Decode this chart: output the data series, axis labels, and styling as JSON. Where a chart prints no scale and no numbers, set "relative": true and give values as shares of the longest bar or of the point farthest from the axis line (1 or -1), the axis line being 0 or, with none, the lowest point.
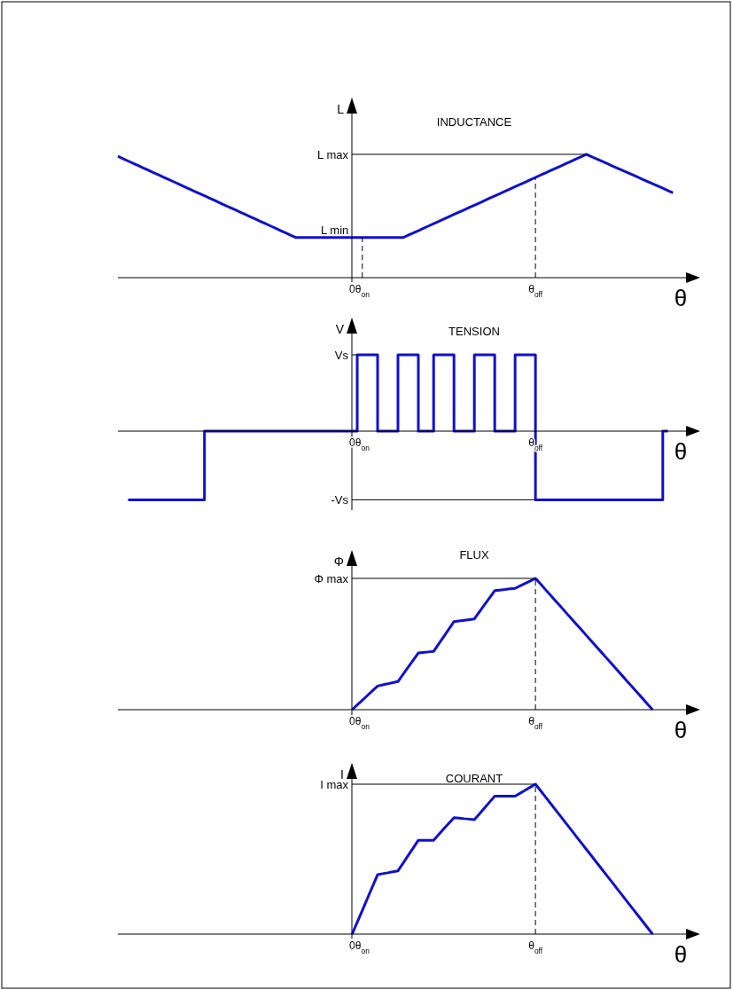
{
  "chart_data": [
    {
      "type": "line",
      "title": "INDUCTANCE",
      "ylabel": "L",
      "xlabel": "θ",
      "relative": true,
      "categories": [
        null,
        null,
        null,
        null,
        null,
        null,
        null,
        null,
        null,
        null,
        null,
        null,
        null,
        null,
        null,
        null,
        null,
        null,
        null,
        null,
        null,
        null,
        null,
        null,
        null,
        null,
        null,
        null,
        null,
        null,
        null,
        null,
        null,
        null,
        null,
        null,
        null,
        null,
        null,
        null,
        null,
        null,
        null,
        null,
        null,
        null,
        "0",
        null,
        "θ$_{on}$",
        null,
        null,
        null,
        null,
        null,
        null,
        null,
        null,
        null,
        null,
        null,
        null,
        null,
        null,
        null,
        null,
        null,
        null,
        null,
        null,
        null,
        null,
        null,
        null,
        null,
        null,
        null,
        null,
        null,
        null,
        null,
        null,
        null,
        "θ$_{off}$",
        null,
        null,
        null,
        null,
        null,
        null,
        null,
        null,
        null,
        null,
        null,
        null,
        null,
        null,
        null,
        null,
        null,
        null,
        null,
        null,
        null,
        null,
        null,
        null,
        null,
        null,
        null,
        null,
        null,
        null,
        null,
        null
      ],
      "series": [
        {
          "color": "#1010d0",
          "values": [
            0.984,
            0.965,
            0.946,
            0.928,
            0.909,
            0.89,
            0.871,
            0.852,
            0.833,
            0.814,
            0.796,
            0.777,
            0.758,
            0.739,
            0.72,
            0.701,
            0.683,
            0.664,
            0.645,
            0.626,
            0.607,
            0.588,
            0.57,
            0.551,
            0.532,
            0.513,
            0.494,
            0.475,
            0.456,
            0.438,
            0.419,
            0.4,
            0.381,
            0.362,
            0.343,
            0.325,
            0.325,
            0.325,
            0.325,
            0.325,
            0.325,
            0.325,
            0.325,
            0.325,
            0.325,
            0.325,
            0.325,
            0.325,
            0.325,
            0.325,
            0.325,
            0.325,
            0.325,
            0.325,
            0.325,
            0.325,
            0.325,
            0.344,
            0.363,
            0.381,
            0.4,
            0.419,
            0.438,
            0.456,
            0.475,
            0.494,
            0.513,
            0.531,
            0.55,
            0.569,
            0.588,
            0.606,
            0.625,
            0.644,
            0.663,
            0.681,
            0.7,
            0.719,
            0.738,
            0.756,
            0.775,
            0.794,
            0.813,
            0.831,
            0.85,
            0.869,
            0.888,
            0.906,
            0.925,
            0.944,
            0.963,
            0.981,
            1,
            0.982,
            0.963,
            0.945,
            0.927,
            0.908,
            0.89,
            0.872,
            0.853,
            0.835,
            0.817,
            0.798,
            0.78,
            0.761,
            0.743,
            0.725,
            0.706,
            0.688,
            null,
            null,
            null,
            null,
            null
          ]
        }
      ],
      "ref_lines": [
        {
          "axis": "y",
          "value": 1,
          "label": "L max"
        },
        {
          "axis": "x",
          "value": "θ$_{on}$",
          "line_style": "dashed"
        },
        {
          "axis": "x",
          "value": "θ$_{off}$",
          "line_style": "dashed"
        }
      ],
      "annotations": [
        {
          "text": "L min",
          "x": "0",
          "y": 0.325
        }
      ]
    },
    {
      "type": "step",
      "title": "TENSION",
      "ylabel": "V",
      "xlabel": "θ",
      "relative": true,
      "categories": [
        null,
        null,
        null,
        null,
        null,
        null,
        null,
        null,
        null,
        null,
        null,
        null,
        null,
        null,
        null,
        null,
        null,
        null,
        null,
        null,
        null,
        null,
        null,
        null,
        null,
        null,
        null,
        null,
        null,
        null,
        null,
        null,
        null,
        null,
        null,
        null,
        null,
        null,
        null,
        null,
        null,
        null,
        null,
        null,
        null,
        null,
        "0",
        null,
        "θ$_{on}$",
        null,
        null,
        null,
        null,
        null,
        null,
        null,
        null,
        null,
        null,
        null,
        null,
        null,
        null,
        null,
        null,
        null,
        null,
        null,
        null,
        null,
        null,
        null,
        null,
        null,
        null,
        null,
        null,
        null,
        null,
        null,
        null,
        null,
        "θ$_{off}$",
        null,
        null,
        null,
        null,
        null,
        null,
        null,
        null,
        null,
        null,
        null,
        null,
        null,
        null,
        null,
        null,
        null,
        null,
        null,
        null,
        null,
        null,
        null,
        null,
        null,
        null,
        null,
        null,
        null,
        null,
        null,
        null
      ],
      "series": [
        {
          "color": "#1010d0",
          "values": [
            null,
            null,
            -0.9,
            -0.9,
            -0.9,
            -0.9,
            -0.9,
            -0.9,
            -0.9,
            -0.9,
            -0.9,
            -0.9,
            -0.9,
            -0.9,
            -0.9,
            -0.9,
            -0.9,
            0,
            0,
            0,
            0,
            0,
            0,
            0,
            0,
            0,
            0,
            0,
            0,
            0,
            0,
            0,
            0,
            0,
            0,
            0,
            0,
            0,
            0,
            0,
            0,
            0,
            0,
            0,
            0,
            0,
            0,
            1,
            1,
            1,
            1,
            0,
            0,
            0,
            0,
            1,
            1,
            1,
            1,
            0,
            0,
            0,
            1,
            1,
            1,
            1,
            0,
            0,
            0,
            0,
            1,
            1,
            1,
            1,
            0,
            0,
            0,
            0,
            1,
            1,
            1,
            1,
            -0.9,
            -0.9,
            -0.9,
            -0.9,
            -0.9,
            -0.9,
            -0.9,
            -0.9,
            -0.9,
            -0.9,
            -0.9,
            -0.9,
            -0.9,
            -0.9,
            -0.9,
            -0.9,
            -0.9,
            -0.9,
            -0.9,
            -0.9,
            -0.9,
            -0.9,
            -0.9,
            -0.9,
            -0.9,
            0,
            0,
            null,
            null,
            null,
            null,
            null,
            null
          ]
        }
      ],
      "ref_lines": [
        {
          "axis": "y",
          "value": 1,
          "label": "Vs"
        },
        {
          "axis": "y",
          "value": -0.9,
          "label": "-Vs"
        }
      ]
    },
    {
      "type": "line",
      "title": "FLUX",
      "ylabel": "Φ",
      "xlabel": "θ",
      "relative": true,
      "categories": [
        null,
        null,
        null,
        null,
        null,
        null,
        null,
        null,
        null,
        null,
        null,
        null,
        null,
        null,
        null,
        null,
        null,
        null,
        null,
        null,
        null,
        null,
        null,
        null,
        null,
        null,
        null,
        null,
        null,
        null,
        null,
        null,
        null,
        null,
        null,
        null,
        null,
        null,
        null,
        null,
        null,
        null,
        null,
        null,
        null,
        null,
        "0",
        null,
        "θ$_{on}$",
        null,
        null,
        null,
        null,
        null,
        null,
        null,
        null,
        null,
        null,
        null,
        null,
        null,
        null,
        null,
        null,
        null,
        null,
        null,
        null,
        null,
        null,
        null,
        null,
        null,
        null,
        null,
        null,
        null,
        null,
        null,
        null,
        null,
        "θ$_{off}$",
        null,
        null,
        null,
        null,
        null,
        null,
        null,
        null,
        null,
        null,
        null,
        null,
        null,
        null,
        null,
        null,
        null,
        null,
        null,
        null,
        null,
        null,
        null,
        null,
        null,
        null,
        null,
        null,
        null,
        null,
        null,
        null
      ],
      "series": [
        {
          "color": "#1010d0",
          "values": [
            null,
            null,
            null,
            null,
            null,
            null,
            null,
            null,
            null,
            null,
            null,
            null,
            null,
            null,
            null,
            null,
            null,
            null,
            null,
            null,
            null,
            null,
            null,
            null,
            null,
            null,
            null,
            null,
            null,
            null,
            null,
            null,
            null,
            null,
            null,
            null,
            null,
            null,
            null,
            null,
            null,
            null,
            null,
            null,
            null,
            null,
            0,
            0.036,
            0.072,
            0.108,
            0.144,
            0.18,
            0.189,
            0.197,
            0.206,
            0.214,
            0.269,
            0.323,
            0.378,
            0.432,
            0.436,
            0.44,
            0.444,
            0.501,
            0.557,
            0.614,
            0.671,
            0.676,
            0.681,
            0.686,
            0.691,
            0.745,
            0.799,
            0.853,
            0.907,
            0.911,
            0.915,
            0.92,
            0.924,
            0.943,
            0.962,
            0.981,
            1,
            0.957,
            0.913,
            0.87,
            0.826,
            0.783,
            0.739,
            0.696,
            0.652,
            0.609,
            0.565,
            0.522,
            0.478,
            0.435,
            0.391,
            0.348,
            0.304,
            0.261,
            0.217,
            0.174,
            0.13,
            0.087,
            0.043,
            0,
            null,
            null,
            null,
            null,
            null,
            null,
            null,
            null,
            null
          ]
        }
      ],
      "ref_lines": [
        {
          "axis": "y",
          "value": 1,
          "label": "Φ max"
        },
        {
          "axis": "x",
          "value": "θ$_{off}$",
          "line_style": "dashed"
        }
      ]
    },
    {
      "type": "line",
      "title": "COURANT",
      "ylabel": "I",
      "xlabel": "θ",
      "relative": true,
      "categories": [
        null,
        null,
        null,
        null,
        null,
        null,
        null,
        null,
        null,
        null,
        null,
        null,
        null,
        null,
        null,
        null,
        null,
        null,
        null,
        null,
        null,
        null,
        null,
        null,
        null,
        null,
        null,
        null,
        null,
        null,
        null,
        null,
        null,
        null,
        null,
        null,
        null,
        null,
        null,
        null,
        null,
        null,
        null,
        null,
        null,
        null,
        "0",
        null,
        "θ$_{on}$",
        null,
        null,
        null,
        null,
        null,
        null,
        null,
        null,
        null,
        null,
        null,
        null,
        null,
        null,
        null,
        null,
        null,
        null,
        null,
        null,
        null,
        null,
        null,
        null,
        null,
        null,
        null,
        null,
        null,
        null,
        null,
        null,
        null,
        "θ$_{off}$",
        null,
        null,
        null,
        null,
        null,
        null,
        null,
        null,
        null,
        null,
        null,
        null,
        null,
        null,
        null,
        null,
        null,
        null,
        null,
        null,
        null,
        null,
        null,
        null,
        null,
        null,
        null,
        null,
        null,
        null,
        null,
        null
      ],
      "series": [
        {
          "color": "#1010d0",
          "values": [
            null,
            null,
            null,
            null,
            null,
            null,
            null,
            null,
            null,
            null,
            null,
            null,
            null,
            null,
            null,
            null,
            null,
            null,
            null,
            null,
            null,
            null,
            null,
            null,
            null,
            null,
            null,
            null,
            null,
            null,
            null,
            null,
            null,
            null,
            null,
            null,
            null,
            null,
            null,
            null,
            null,
            null,
            null,
            null,
            null,
            null,
            0,
            0.079,
            0.158,
            0.238,
            0.317,
            0.396,
            0.403,
            0.409,
            0.416,
            0.422,
            0.473,
            0.524,
            0.575,
            0.626,
            0.626,
            0.626,
            0.626,
            0.664,
            0.702,
            0.739,
            0.777,
            0.774,
            0.77,
            0.767,
            0.763,
            0.802,
            0.842,
            0.881,
            0.92,
            0.92,
            0.92,
            0.92,
            0.92,
            0.94,
            0.96,
            0.98,
            1,
            0.957,
            0.913,
            0.87,
            0.826,
            0.783,
            0.739,
            0.696,
            0.652,
            0.609,
            0.565,
            0.522,
            0.478,
            0.435,
            0.391,
            0.348,
            0.304,
            0.261,
            0.217,
            0.174,
            0.13,
            0.087,
            0.043,
            0,
            null,
            null,
            null,
            null,
            null,
            null,
            null,
            null,
            null
          ]
        }
      ],
      "ref_lines": [
        {
          "axis": "y",
          "value": 1,
          "label": "I max"
        },
        {
          "axis": "x",
          "value": "θ$_{off}$",
          "line_style": "dashed"
        }
      ]
    }
  ]
}
